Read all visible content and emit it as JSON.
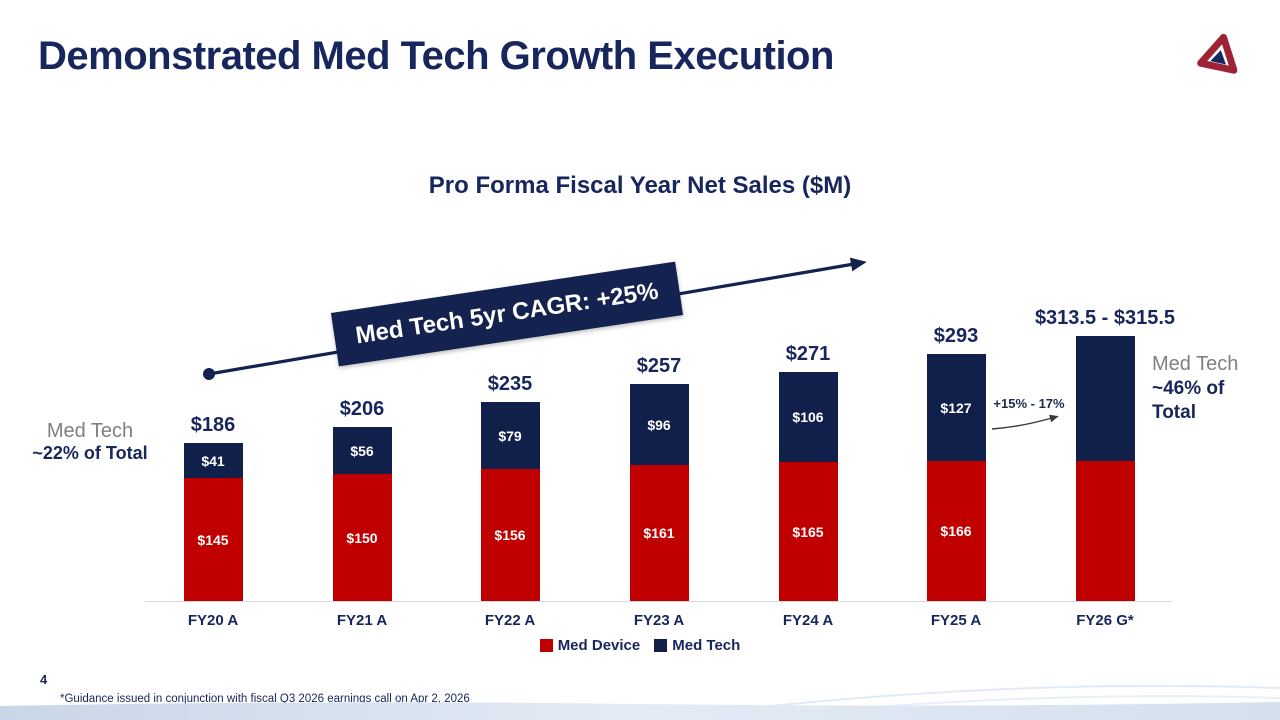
{
  "slide": {
    "title": "Demonstrated Med Tech Growth Execution",
    "page_number": "4",
    "footnote": "*Guidance issued in conjunction with fiscal Q3 2026 earnings call on Apr 2, 2026",
    "logo_icon": "company-logo"
  },
  "colors": {
    "navy_text": "#17265C",
    "bar_navy": "#111F4B",
    "bar_red": "#C00000",
    "muted_gray": "#7F7F7F",
    "axis_line": "#D9D9D9",
    "banner_navy": "#14224F"
  },
  "chart_data": {
    "type": "bar",
    "stacked": true,
    "title": "Pro Forma Fiscal Year Net Sales ($M)",
    "categories": [
      "FY20 A",
      "FY21 A",
      "FY22 A",
      "FY23 A",
      "FY24 A",
      "FY25 A",
      "FY26 G*"
    ],
    "series": [
      {
        "name": "Med Device",
        "color": "#C00000",
        "values": [
          145,
          150,
          156,
          161,
          165,
          166,
          166
        ],
        "labels": [
          "$145",
          "$150",
          "$156",
          "$161",
          "$165",
          "$166",
          ""
        ]
      },
      {
        "name": "Med Tech",
        "color": "#111F4B",
        "values": [
          41,
          56,
          79,
          96,
          106,
          127,
          148.5
        ],
        "labels": [
          "$41",
          "$56",
          "$79",
          "$96",
          "$106",
          "$127",
          ""
        ]
      }
    ],
    "totals": [
      186,
      206,
      235,
      257,
      271,
      293,
      314.5
    ],
    "total_labels": [
      "$186",
      "$206",
      "$235",
      "$257",
      "$271",
      "$293",
      "$313.5 - $315.5"
    ],
    "xlabel": "",
    "ylabel": "",
    "ylim": [
      0,
      330
    ],
    "gridlines": false,
    "legend": {
      "position": "bottom",
      "items": [
        "Med Device",
        "Med Tech"
      ]
    }
  },
  "annotations": {
    "cagr_banner": "Med Tech 5yr CAGR: +25%",
    "growth_range_label": "+15% - 17%",
    "left_callout": {
      "line1": "Med Tech",
      "line2": "~22% of Total"
    },
    "right_callout": {
      "line1": "Med Tech",
      "line2": "~46% of",
      "line3": "Total"
    }
  }
}
